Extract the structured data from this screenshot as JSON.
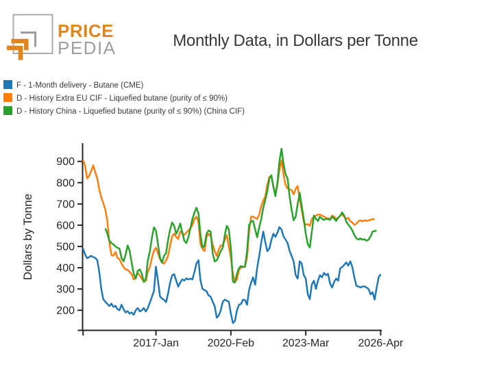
{
  "logo": {
    "word_top": "PRICE",
    "word_bottom": "PEDIA",
    "orange": "#e0861e",
    "gray": "#a8a8a8"
  },
  "header": {
    "title": "Monthly Data, in Dollars per Tonne"
  },
  "chart_data": {
    "type": "line",
    "title": "Monthly Data, in Dollars per Tonne",
    "xlabel": "",
    "ylabel": "Dollars by Tonne",
    "grid": false,
    "legend_position": "top-left",
    "axis_color": "#262626",
    "x_axis": {
      "unit": "month",
      "start": "2014-01",
      "tick_labels": [
        "2017-Jan",
        "2020-Feb",
        "2023-Mar",
        "2026-Apr"
      ],
      "tick_months": [
        36,
        73,
        110,
        147
      ],
      "minor_tick_months": [
        0
      ]
    },
    "y_axis": {
      "ticks": [
        200,
        300,
        400,
        500,
        600,
        700,
        800,
        900
      ],
      "min": 110,
      "max": 975
    },
    "series": [
      {
        "label": "F - 1-Month delivery - Butane (CME)",
        "color": "#1f77b4",
        "start_month": 0,
        "values": [
          490,
          462,
          445,
          450,
          456,
          450,
          446,
          436,
          380,
          300,
          252,
          240,
          230,
          220,
          231,
          216,
          221,
          205,
          200,
          226,
          205,
          190,
          196,
          184,
          190,
          179,
          200,
          211,
          195,
          200,
          211,
          194,
          211,
          236,
          263,
          290,
          405,
          339,
          265,
          255,
          249,
          238,
          280,
          330,
          364,
          370,
          340,
          311,
          330,
          345,
          340,
          350,
          345,
          349,
          345,
          380,
          420,
          435,
          340,
          300,
          295,
          289,
          270,
          264,
          240,
          220,
          165,
          175,
          200,
          240,
          250,
          245,
          240,
          185,
          140,
          150,
          200,
          226,
          230,
          250,
          248,
          226,
          296,
          330,
          355,
          320,
          400,
          455,
          520,
          570,
          520,
          478,
          490,
          530,
          560,
          545,
          565,
          591,
          580,
          548,
          532,
          516,
          480,
          455,
          430,
          365,
          349,
          430,
          420,
          365,
          349,
          275,
          253,
          322,
          339,
          301,
          339,
          365,
          355,
          376,
          365,
          371,
          325,
          307,
          333,
          349,
          339,
          398,
          403,
          414,
          425,
          410,
          430,
          403,
          355,
          315,
          312,
          307,
          312,
          312,
          307,
          300,
          275,
          285,
          250,
          305,
          355,
          370
        ]
      },
      {
        "label": "D - History Extra EU CIF - Liquefied butane (purity of ≤ 90%)",
        "color": "#ff7f0e",
        "start_month": 0,
        "values": [
          905,
          880,
          820,
          832,
          855,
          881,
          850,
          820,
          768,
          731,
          704,
          672,
          620,
          520,
          460,
          457,
          474,
          446,
          440,
          420,
          403,
          392,
          390,
          380,
          370,
          345,
          354,
          375,
          364,
          349,
          335,
          338,
          380,
          403,
          446,
          480,
          494,
          468,
          440,
          425,
          419,
          435,
          457,
          505,
          548,
          560,
          545,
          535,
          570,
          565,
          554,
          565,
          575,
          586,
          600,
          630,
          640,
          613,
          510,
          489,
          478,
          545,
          559,
          549,
          510,
          478,
          455,
          484,
          505,
          505,
          530,
          554,
          499,
          450,
          371,
          335,
          345,
          390,
          400,
          405,
          405,
          450,
          570,
          640,
          640,
          634,
          629,
          650,
          690,
          715,
          736,
          790,
          827,
          832,
          780,
          747,
          790,
          860,
          905,
          840,
          790,
          773,
          768,
          765,
          745,
          770,
          784,
          720,
          671,
          615,
          602,
          605,
          597,
          629,
          640,
          645,
          650,
          650,
          645,
          640,
          635,
          632,
          629,
          645,
          640,
          630,
          635,
          645,
          650,
          640,
          630,
          634,
          618,
          613,
          602,
          607,
          618,
          623,
          618,
          623,
          620,
          623,
          625,
          629,
          627
        ]
      },
      {
        "label": "D - History China - Liquefied butane (purity of ≤ 90%) (China CIF)",
        "color": "#2ca02c",
        "start_month": 11,
        "values": [
          585,
          560,
          527,
          516,
          510,
          500,
          494,
          489,
          446,
          430,
          460,
          505,
          480,
          424,
          371,
          349,
          386,
          392,
          371,
          333,
          349,
          435,
          478,
          540,
          590,
          575,
          510,
          446,
          424,
          457,
          468,
          532,
          580,
          613,
          597,
          559,
          580,
          608,
          565,
          527,
          516,
          543,
          586,
          629,
          660,
          682,
          655,
          554,
          494,
          505,
          560,
          575,
          570,
          468,
          430,
          435,
          455,
          478,
          494,
          554,
          597,
          580,
          494,
          335,
          330,
          371,
          398,
          408,
          403,
          405,
          480,
          600,
          618,
          620,
          580,
          543,
          590,
          630,
          682,
          721,
          760,
          820,
          835,
          780,
          736,
          800,
          900,
          960,
          890,
          840,
          820,
          736,
          671,
          623,
          640,
          700,
          752,
          690,
          630,
          560,
          510,
          495,
          570,
          645,
          630,
          620,
          640,
          630,
          625,
          630,
          628,
          625,
          640,
          632,
          620,
          635,
          645,
          660,
          645,
          618,
          602,
          591,
          575,
          554,
          538,
          532,
          538,
          532,
          534,
          527,
          532,
          548,
          570,
          572,
          575
        ]
      }
    ]
  }
}
